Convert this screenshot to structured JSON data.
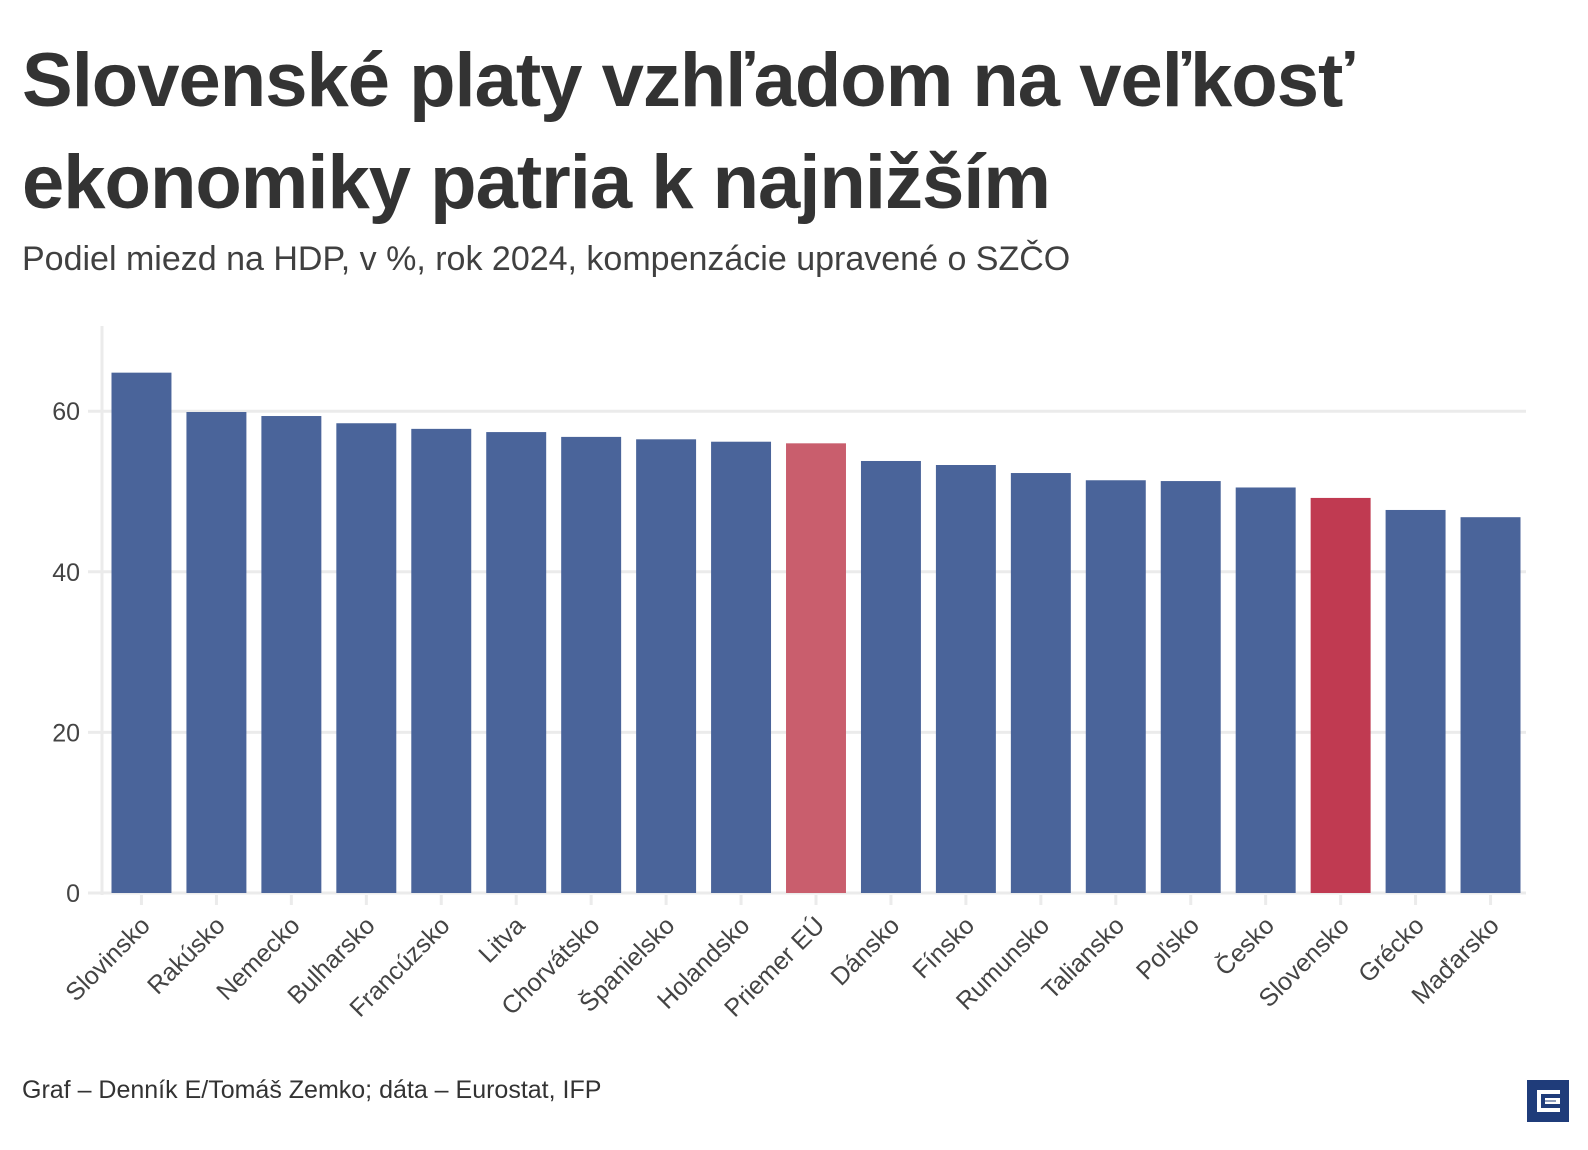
{
  "header": {
    "title_line1": "Slovenské platy vzhľadom na veľkosť",
    "title_line2": "ekonomiky patria k najnižším",
    "subtitle": "Podiel miezd na HDP, v %, rok 2024, kompenzácie upravené o SZČO"
  },
  "footer": {
    "source": "Graf – Denník E/Tomáš Zemko; dáta – Eurostat, IFP",
    "logo_icon": "denník-e-logo-icon"
  },
  "colors": {
    "default_bar": "#4a649a",
    "eu_average_bar": "#c95e6d",
    "slovakia_bar": "#c03a51",
    "grid": "#ebebeb",
    "text": "#333333",
    "logo": "#1f3c7a"
  },
  "chart_data": {
    "type": "bar",
    "title": "Slovenské platy vzhľadom na veľkosť ekonomiky patria k najnižším",
    "subtitle": "Podiel miezd na HDP, v %, rok 2024, kompenzácie upravené o SZČO",
    "xlabel": "",
    "ylabel": "",
    "ylim": [
      0,
      70
    ],
    "yticks": [
      0,
      20,
      40,
      60
    ],
    "grid": true,
    "legend": "none",
    "categories": [
      "Slovinsko",
      "Rakúsko",
      "Nemecko",
      "Bulharsko",
      "Francúzsko",
      "Litva",
      "Chorvátsko",
      "Španielsko",
      "Holandsko",
      "Priemer EÚ",
      "Dánsko",
      "Fínsko",
      "Rumunsko",
      "Taliansko",
      "Poľsko",
      "Česko",
      "Slovensko",
      "Grécko",
      "Maďarsko"
    ],
    "values": [
      64.8,
      59.9,
      59.4,
      58.5,
      57.8,
      57.4,
      56.8,
      56.5,
      56.2,
      56.0,
      53.8,
      53.3,
      52.3,
      51.4,
      51.3,
      50.5,
      49.2,
      47.7,
      46.8
    ],
    "highlight": {
      "Priemer EÚ": "eu_average_bar",
      "Slovensko": "slovakia_bar"
    }
  }
}
